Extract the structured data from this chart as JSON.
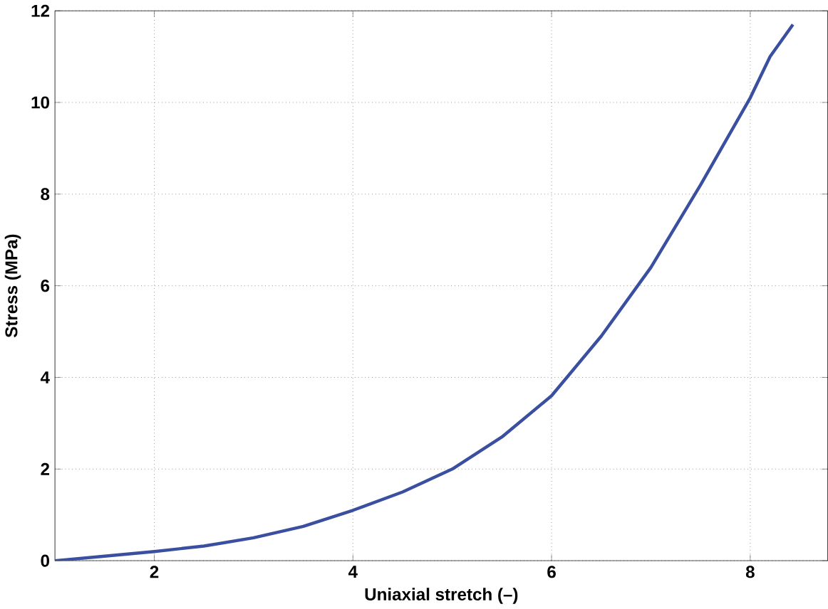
{
  "chart_data": {
    "type": "line",
    "xlabel": "Uniaxial stretch (–)",
    "ylabel": "Stress (MPa)",
    "x": [
      1,
      1.5,
      2,
      2.5,
      3,
      3.5,
      4,
      4.5,
      5,
      5.5,
      6,
      6.5,
      7,
      7.5,
      8,
      8.2,
      8.43
    ],
    "series": [
      {
        "color": "#3a4fa0",
        "values": [
          0,
          0.1,
          0.2,
          0.32,
          0.5,
          0.75,
          1.1,
          1.5,
          2.0,
          2.7,
          3.6,
          4.9,
          6.4,
          8.2,
          10.1,
          11.0,
          11.7
        ]
      }
    ],
    "xlim": [
      1,
      8.78
    ],
    "ylim": [
      0,
      12
    ],
    "xticks": [
      2,
      4,
      6,
      8
    ],
    "yticks": [
      0,
      2,
      4,
      6,
      8,
      10,
      12
    ],
    "grid": true,
    "marker": "none",
    "line_style": "solid"
  }
}
